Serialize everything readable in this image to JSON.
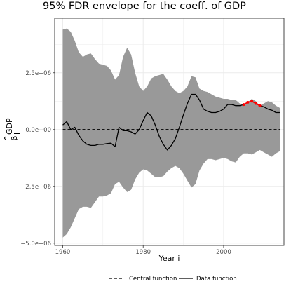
{
  "chart_data": {
    "type": "line",
    "title": "95% FDR envelope for the coeff. of GDP",
    "xlabel": "Year i",
    "ylabel_main": "β",
    "ylabel_hat": "^",
    "ylabel_sup": "GDP",
    "ylabel_sub": "i",
    "xlim": [
      1958,
      2015
    ],
    "ylim": [
      -5.1e-06,
      4.9e-06
    ],
    "x_ticks": [
      {
        "value": 1960,
        "label": "1960"
      },
      {
        "value": 1980,
        "label": "1980"
      },
      {
        "value": 2000,
        "label": "2000"
      }
    ],
    "y_ticks": [
      {
        "value": -5e-06,
        "label": "−5.0e−06"
      },
      {
        "value": -2.5e-06,
        "label": "−2.5e−06"
      },
      {
        "value": 0,
        "label": "0.0e+00"
      },
      {
        "value": 2.5e-06,
        "label": "2.5e−06"
      }
    ],
    "grid": true,
    "legend_position": "bottom",
    "colors": {
      "envelope": "#999999",
      "data_line": "#000000",
      "central_line": "#000000",
      "highlight": "#ff0000",
      "grid": "#ebebeb",
      "panel_border": "#333333"
    },
    "envelope": {
      "x": [
        1960,
        1961,
        1962,
        1963,
        1964,
        1965,
        1966,
        1967,
        1968,
        1969,
        1970,
        1971,
        1972,
        1973,
        1974,
        1975,
        1976,
        1977,
        1978,
        1979,
        1980,
        1981,
        1982,
        1983,
        1984,
        1985,
        1986,
        1987,
        1988,
        1989,
        1990,
        1991,
        1992,
        1993,
        1994,
        1995,
        1996,
        1997,
        1998,
        1999,
        2000,
        2001,
        2002,
        2003,
        2004,
        2005,
        2006,
        2007,
        2008,
        2009,
        2010,
        2011,
        2012,
        2013,
        2014
      ],
      "upper": [
        4.4e-06,
        4.45e-06,
        4.3e-06,
        3.9e-06,
        3.4e-06,
        3.2e-06,
        3.3e-06,
        3.35e-06,
        3.1e-06,
        2.9e-06,
        2.85e-06,
        2.8e-06,
        2.6e-06,
        2.2e-06,
        2.4e-06,
        3.2e-06,
        3.6e-06,
        3.3e-06,
        2.5e-06,
        1.9e-06,
        1.7e-06,
        1.9e-06,
        2.25e-06,
        2.35e-06,
        2.4e-06,
        2.45e-06,
        2.2e-06,
        1.9e-06,
        1.7e-06,
        1.6e-06,
        1.7e-06,
        1.9e-06,
        2.35e-06,
        2.3e-06,
        1.8e-06,
        1.7e-06,
        1.65e-06,
        1.55e-06,
        1.45e-06,
        1.4e-06,
        1.35e-06,
        1.35e-06,
        1.3e-06,
        1.3e-06,
        1.15e-06,
        1.05e-06,
        1.2e-06,
        1.35e-06,
        1.25e-06,
        1.05e-06,
        1.15e-06,
        1.25e-06,
        1.2e-06,
        1.05e-06,
        9.5e-07
      ],
      "lower": [
        -4.75e-06,
        -4.6e-06,
        -4.3e-06,
        -3.9e-06,
        -3.5e-06,
        -3.4e-06,
        -3.4e-06,
        -3.45e-06,
        -3.2e-06,
        -2.95e-06,
        -2.95e-06,
        -2.9e-06,
        -2.8e-06,
        -2.4e-06,
        -2.3e-06,
        -2.55e-06,
        -2.75e-06,
        -2.65e-06,
        -2.2e-06,
        -1.9e-06,
        -1.75e-06,
        -1.8e-06,
        -1.95e-06,
        -2.1e-06,
        -2.1e-06,
        -2.05e-06,
        -1.85e-06,
        -1.7e-06,
        -1.6e-06,
        -1.7e-06,
        -1.95e-06,
        -2.25e-06,
        -2.55e-06,
        -2.4e-06,
        -1.8e-06,
        -1.5e-06,
        -1.3e-06,
        -1.3e-06,
        -1.35e-06,
        -1.3e-06,
        -1.25e-06,
        -1.3e-06,
        -1.4e-06,
        -1.45e-06,
        -1.2e-06,
        -1.05e-06,
        -1.05e-06,
        -1.1e-06,
        -1e-06,
        -9e-07,
        -1e-06,
        -1.1e-06,
        -1.2e-06,
        -1.05e-06,
        -9.5e-07
      ]
    },
    "series": [
      {
        "name": "Central function",
        "dash": "dashed",
        "x": [
          1960,
          2014
        ],
        "values": [
          0,
          0
        ]
      },
      {
        "name": "Data function",
        "dash": "solid",
        "x": [
          1960,
          1961,
          1962,
          1963,
          1964,
          1965,
          1966,
          1967,
          1968,
          1969,
          1970,
          1971,
          1972,
          1973,
          1974,
          1975,
          1976,
          1977,
          1978,
          1979,
          1980,
          1981,
          1982,
          1983,
          1984,
          1985,
          1986,
          1987,
          1988,
          1989,
          1990,
          1991,
          1992,
          1993,
          1994,
          1995,
          1996,
          1997,
          1998,
          1999,
          2000,
          2001,
          2002,
          2003,
          2004,
          2005,
          2006,
          2007,
          2008,
          2009,
          2010,
          2011,
          2012,
          2013,
          2014
        ],
        "values": [
          2e-07,
          3.5e-07,
          0.0,
          1e-07,
          -2.5e-07,
          -5e-07,
          -6.5e-07,
          -7e-07,
          -7e-07,
          -6.5e-07,
          -6.5e-07,
          -6.2e-07,
          -6e-07,
          -7.5e-07,
          1e-07,
          -5e-08,
          -5e-08,
          -1e-07,
          -2e-07,
          0.0,
          4e-07,
          7.5e-07,
          6e-07,
          2e-07,
          -3e-07,
          -6.5e-07,
          -9e-07,
          -7e-07,
          -4e-07,
          1e-07,
          6.5e-07,
          1.15e-06,
          1.55e-06,
          1.55e-06,
          1.3e-06,
          9e-07,
          8e-07,
          7.5e-07,
          7.5e-07,
          8e-07,
          9e-07,
          1.1e-06,
          1.1e-06,
          1.05e-06,
          1.05e-06,
          1.1e-06,
          1.2e-06,
          1.25e-06,
          1.15e-06,
          1.05e-06,
          1e-06,
          9e-07,
          8.5e-07,
          7.5e-07,
          7.5e-07
        ]
      }
    ],
    "highlight": {
      "x": [
        2005,
        2006,
        2007,
        2008,
        2009
      ],
      "values": [
        1.1e-06,
        1.2e-06,
        1.25e-06,
        1.15e-06,
        1.05e-06
      ]
    }
  }
}
